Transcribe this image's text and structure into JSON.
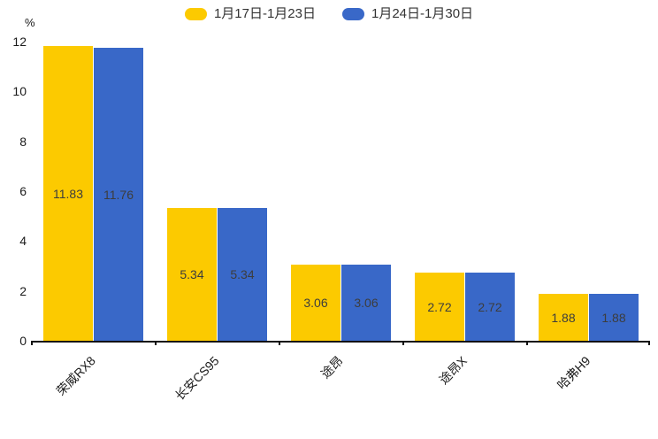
{
  "chart_data": {
    "type": "bar",
    "title": "",
    "unit_label": "%",
    "categories": [
      "荣威RX8",
      "长安CS95",
      "途昂",
      "途昂X",
      "哈弗H9"
    ],
    "series": [
      {
        "name": "1月17日-1月23日",
        "color": "#FCCA00",
        "values": [
          11.83,
          5.34,
          3.06,
          2.72,
          1.88
        ]
      },
      {
        "name": "1月24日-1月30日",
        "color": "#3968C8",
        "values": [
          11.76,
          5.34,
          3.06,
          2.72,
          1.88
        ]
      }
    ],
    "ylim": [
      0,
      12
    ],
    "yticks": [
      0,
      2,
      4,
      6,
      8,
      10,
      12
    ],
    "grid": false,
    "legend_position": "top",
    "value_label_position": "inside-center",
    "xlabel_rotation_deg": 45
  },
  "colors": {
    "background": "#ffffff",
    "axis": "#111111",
    "tick_text": "#1a1a1a",
    "bar_value_text": "#3d3d3d",
    "legend_text": "#333333"
  }
}
